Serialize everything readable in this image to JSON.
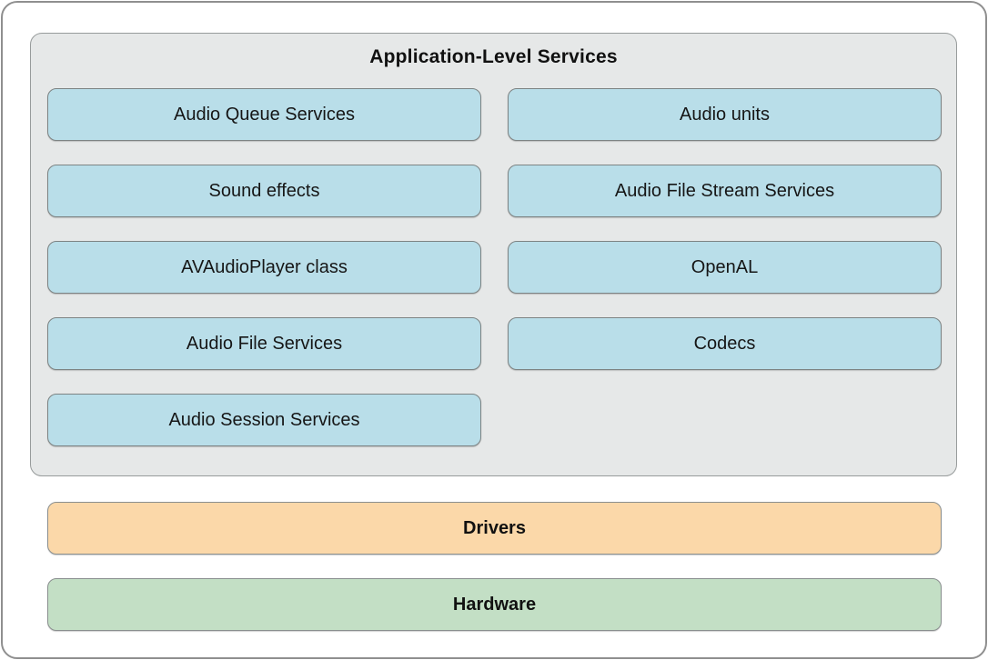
{
  "diagram": {
    "title": "Application-Level Services",
    "services": {
      "left": [
        "Audio Queue Services",
        "Sound effects",
        "AVAudioPlayer class",
        "Audio File Services",
        "Audio Session Services"
      ],
      "right": [
        "Audio units",
        "Audio File Stream Services",
        "OpenAL",
        "Codecs"
      ]
    },
    "layers": {
      "drivers": {
        "label": "Drivers",
        "color": "#fbd8a9"
      },
      "hardware": {
        "label": "Hardware",
        "color": "#c3dfc5"
      }
    },
    "colors": {
      "service_box": "#b9dee9",
      "panel_background": "#e6e8e8",
      "box_border": "#7d8383",
      "outer_border": "#8f8f8f",
      "text": "#111111"
    }
  }
}
